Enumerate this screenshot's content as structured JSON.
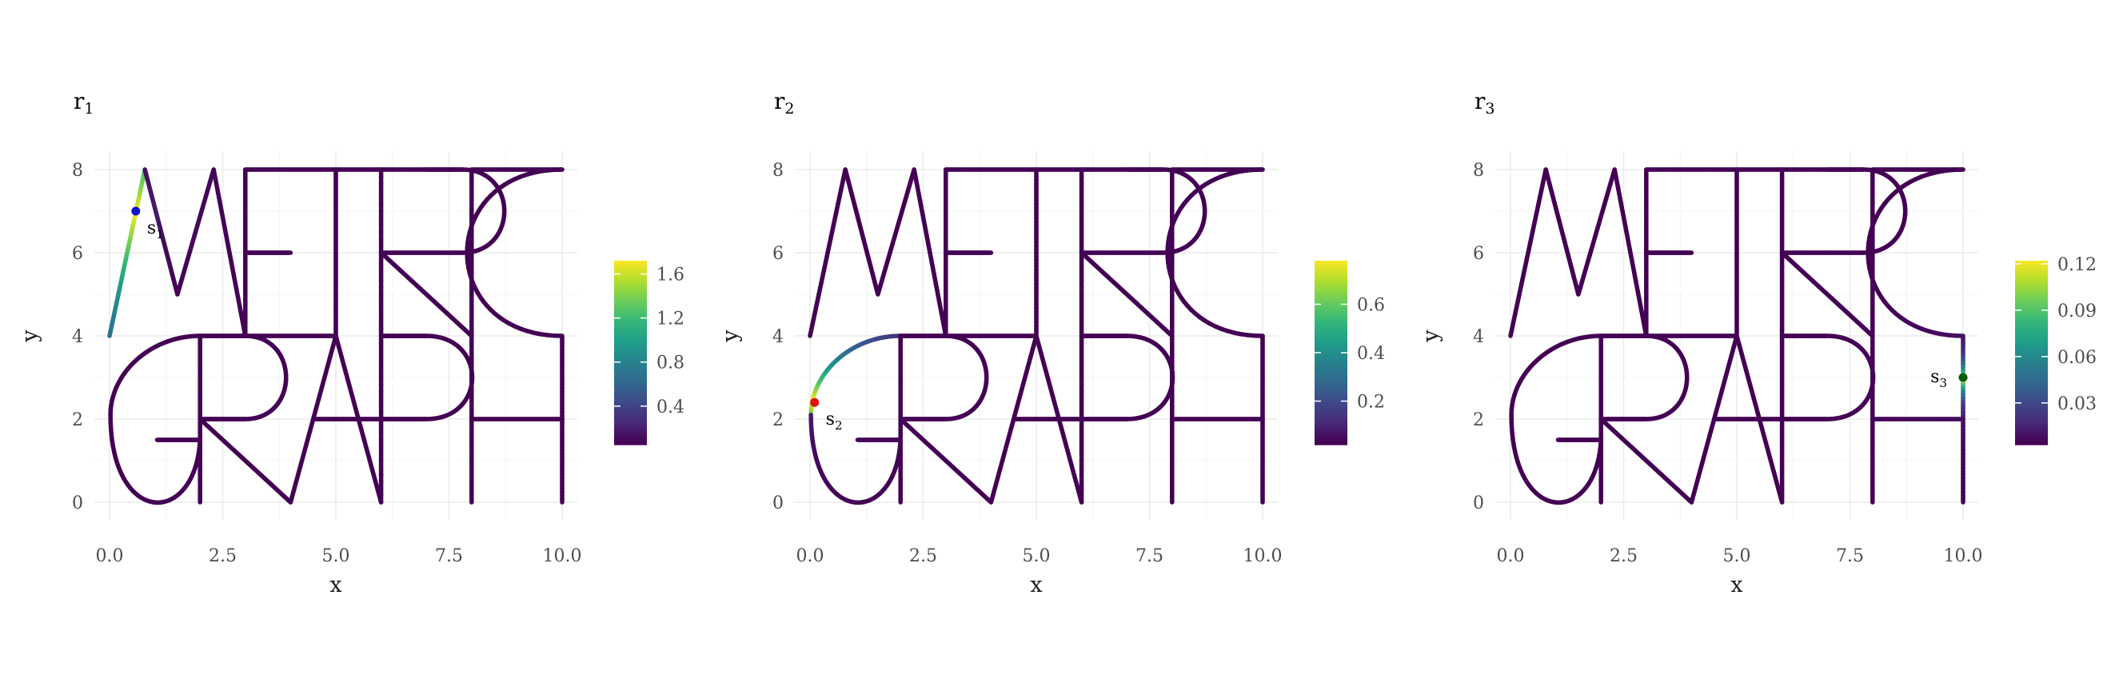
{
  "chart_data": [
    {
      "type": "metric_graph_field",
      "title": "r",
      "title_sub": "1",
      "xlabel": "x",
      "ylabel": "y",
      "xlim": [
        0,
        10
      ],
      "ylim": [
        0,
        8
      ],
      "x_ticks": [
        "0.0",
        "2.5",
        "5.0",
        "7.5",
        "10.0"
      ],
      "y_ticks": [
        "0",
        "2",
        "4",
        "6",
        "8"
      ],
      "grid": true,
      "legend": {
        "type": "colorbar",
        "placement": "right",
        "range": [
          0.05,
          1.72
        ],
        "ticks": [
          {
            "value": 0.4,
            "label": "0.4"
          },
          {
            "value": 0.8,
            "label": "0.8"
          },
          {
            "value": 1.2,
            "label": "1.2"
          },
          {
            "value": 1.6,
            "label": "1.6"
          }
        ]
      },
      "source_point": {
        "label": "s",
        "label_sub": "1",
        "x": 0.58,
        "y": 7.0,
        "color": "#1010d0",
        "label_side": "right"
      },
      "field": {
        "peak": 1.72,
        "edge_scale": 3.0,
        "other_scale": 0.8,
        "floor": 0.05
      }
    },
    {
      "type": "metric_graph_field",
      "title": "r",
      "title_sub": "2",
      "xlabel": "x",
      "ylabel": "y",
      "xlim": [
        0,
        10
      ],
      "ylim": [
        0,
        8
      ],
      "x_ticks": [
        "0.0",
        "2.5",
        "5.0",
        "7.5",
        "10.0"
      ],
      "y_ticks": [
        "0",
        "2",
        "4",
        "6",
        "8"
      ],
      "grid": true,
      "legend": {
        "type": "colorbar",
        "placement": "right",
        "range": [
          0.02,
          0.78
        ],
        "ticks": [
          {
            "value": 0.2,
            "label": "0.2"
          },
          {
            "value": 0.4,
            "label": "0.4"
          },
          {
            "value": 0.6,
            "label": "0.6"
          }
        ]
      },
      "source_point": {
        "label": "s",
        "label_sub": "2",
        "x": 0.1,
        "y": 2.4,
        "color": "#e01010",
        "label_side": "right"
      },
      "field": {
        "peak": 0.78,
        "edge_scale": 1.4,
        "other_scale": 0.8,
        "floor": 0.02
      }
    },
    {
      "type": "metric_graph_field",
      "title": "r",
      "title_sub": "3",
      "xlabel": "x",
      "ylabel": "y",
      "xlim": [
        0,
        10
      ],
      "ylim": [
        0,
        8
      ],
      "x_ticks": [
        "0.0",
        "2.5",
        "5.0",
        "7.5",
        "10.0"
      ],
      "y_ticks": [
        "0",
        "2",
        "4",
        "6",
        "8"
      ],
      "grid": true,
      "legend": {
        "type": "colorbar",
        "placement": "right",
        "range": [
          0.003,
          0.122
        ],
        "ticks": [
          {
            "value": 0.03,
            "label": "0.03"
          },
          {
            "value": 0.06,
            "label": "0.06"
          },
          {
            "value": 0.09,
            "label": "0.09"
          },
          {
            "value": 0.12,
            "label": "0.12"
          }
        ]
      },
      "source_point": {
        "label": "s",
        "label_sub": "3",
        "x": 10.0,
        "y": 3.0,
        "color": "#0a5a0a",
        "label_side": "left"
      },
      "field": {
        "peak": 0.122,
        "edge_scale": 0.35,
        "other_scale": 0.8,
        "floor": 0.003
      }
    }
  ],
  "graph": {
    "description": "shared metric graph network (letters METRIC / GRAPH) in data units",
    "edges": [
      {
        "id": "M1",
        "kind": "line",
        "pts": [
          [
            0,
            4
          ],
          [
            0.78,
            8
          ]
        ]
      },
      {
        "id": "M2",
        "kind": "line",
        "pts": [
          [
            0.78,
            8
          ],
          [
            1.5,
            5
          ]
        ]
      },
      {
        "id": "M3",
        "kind": "line",
        "pts": [
          [
            1.5,
            5
          ],
          [
            2.3,
            8
          ]
        ]
      },
      {
        "id": "M4",
        "kind": "line",
        "pts": [
          [
            2.3,
            8
          ],
          [
            3,
            4
          ]
        ]
      },
      {
        "id": "E1",
        "kind": "line",
        "pts": [
          [
            3,
            4
          ],
          [
            3,
            8
          ]
        ]
      },
      {
        "id": "E2",
        "kind": "line",
        "pts": [
          [
            3,
            8
          ],
          [
            5,
            8
          ]
        ]
      },
      {
        "id": "E3",
        "kind": "line",
        "pts": [
          [
            3,
            6
          ],
          [
            4,
            6
          ]
        ]
      },
      {
        "id": "E4",
        "kind": "line",
        "pts": [
          [
            3,
            4
          ],
          [
            5,
            4
          ]
        ]
      },
      {
        "id": "T1",
        "kind": "line",
        "pts": [
          [
            5,
            8
          ],
          [
            7,
            8
          ]
        ]
      },
      {
        "id": "T2",
        "kind": "line",
        "pts": [
          [
            5,
            4
          ],
          [
            5,
            8
          ]
        ]
      },
      {
        "id": "T3",
        "kind": "line",
        "pts": [
          [
            6,
            0
          ],
          [
            6,
            8
          ]
        ]
      },
      {
        "id": "R1",
        "kind": "line",
        "pts": [
          [
            7,
            8
          ],
          [
            7.8,
            8
          ]
        ]
      },
      {
        "id": "R2",
        "kind": "bowl",
        "from": [
          7.8,
          8
        ],
        "to": [
          7.8,
          6
        ],
        "ctrl": [
          [
            9.03,
            8
          ],
          [
            9.03,
            6
          ]
        ]
      },
      {
        "id": "R3",
        "kind": "line",
        "pts": [
          [
            6,
            6
          ],
          [
            7.8,
            6
          ]
        ]
      },
      {
        "id": "R4",
        "kind": "line",
        "pts": [
          [
            6,
            6
          ],
          [
            8,
            4
          ]
        ]
      },
      {
        "id": "I1",
        "kind": "line",
        "pts": [
          [
            8,
            0
          ],
          [
            8,
            8
          ]
        ]
      },
      {
        "id": "C1",
        "kind": "bowl",
        "from": [
          10,
          8
        ],
        "to": [
          10,
          4
        ],
        "ctrl": [
          [
            7.2,
            8
          ],
          [
            7.2,
            4
          ]
        ]
      },
      {
        "id": "L1",
        "kind": "line",
        "pts": [
          [
            8,
            8
          ],
          [
            10,
            8
          ]
        ]
      },
      {
        "id": "G1",
        "kind": "bowl",
        "from": [
          2,
          4
        ],
        "to": [
          0.02,
          2.1
        ],
        "ctrl": [
          [
            0.9,
            4
          ],
          [
            0.02,
            3.1
          ]
        ]
      },
      {
        "id": "G2",
        "kind": "bowl",
        "from": [
          0.02,
          2.1
        ],
        "to": [
          2,
          1.5
        ],
        "ctrl": [
          [
            0.02,
            -0.6
          ],
          [
            1.9,
            -0.6
          ]
        ]
      },
      {
        "id": "G3",
        "kind": "line",
        "pts": [
          [
            1.05,
            1.5
          ],
          [
            2,
            1.5
          ]
        ]
      },
      {
        "id": "G4",
        "kind": "line",
        "pts": [
          [
            2,
            0
          ],
          [
            2,
            4
          ]
        ]
      },
      {
        "id": "R5",
        "kind": "line",
        "pts": [
          [
            2,
            4
          ],
          [
            3,
            4
          ]
        ]
      },
      {
        "id": "R6",
        "kind": "bowl",
        "from": [
          3,
          4
        ],
        "to": [
          3,
          2
        ],
        "ctrl": [
          [
            4.2,
            4
          ],
          [
            4.2,
            2
          ]
        ]
      },
      {
        "id": "R7",
        "kind": "line",
        "pts": [
          [
            2,
            2
          ],
          [
            3,
            2
          ]
        ]
      },
      {
        "id": "R8",
        "kind": "line",
        "pts": [
          [
            2,
            2
          ],
          [
            4,
            0
          ]
        ]
      },
      {
        "id": "A1",
        "kind": "line",
        "pts": [
          [
            4,
            0
          ],
          [
            5,
            4
          ]
        ]
      },
      {
        "id": "A2",
        "kind": "line",
        "pts": [
          [
            5,
            4
          ],
          [
            6,
            0
          ]
        ]
      },
      {
        "id": "A3",
        "kind": "line",
        "pts": [
          [
            4.5,
            2
          ],
          [
            6,
            2
          ]
        ]
      },
      {
        "id": "P1",
        "kind": "line",
        "pts": [
          [
            6,
            4
          ],
          [
            7,
            4
          ]
        ]
      },
      {
        "id": "P2",
        "kind": "bowl",
        "from": [
          7,
          4
        ],
        "to": [
          7,
          2
        ],
        "ctrl": [
          [
            8.35,
            4
          ],
          [
            8.35,
            2
          ]
        ]
      },
      {
        "id": "P3",
        "kind": "line",
        "pts": [
          [
            6,
            2
          ],
          [
            7,
            2
          ]
        ]
      },
      {
        "id": "H1",
        "kind": "line",
        "pts": [
          [
            10,
            0
          ],
          [
            10,
            4
          ]
        ]
      },
      {
        "id": "H2",
        "kind": "line",
        "pts": [
          [
            8,
            2
          ],
          [
            10,
            2
          ]
        ]
      }
    ]
  }
}
